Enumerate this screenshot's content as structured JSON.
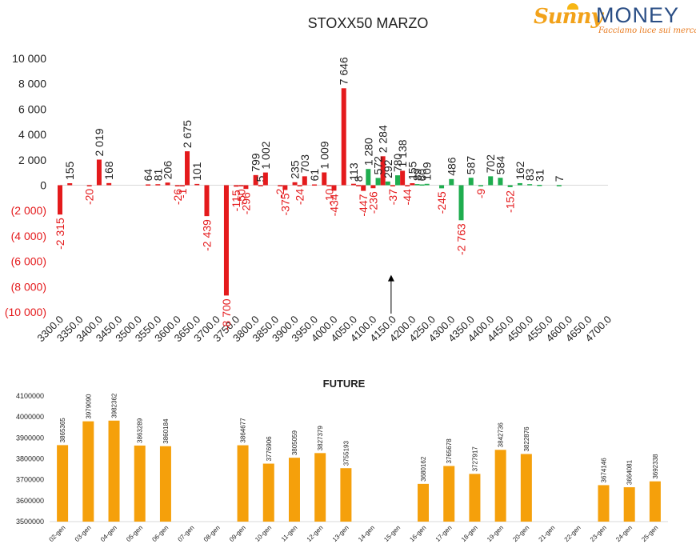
{
  "logo": {
    "brand_first": "Sunny",
    "brand_second": "MONEY",
    "tagline": "Facciamo luce sui mercati"
  },
  "colors": {
    "negative": "#e41a1c",
    "positive": "#1fad4f",
    "future": "#f5a00b",
    "axis": "#d9d9d9",
    "text": "#222222"
  },
  "chart_data": [
    {
      "type": "bar",
      "title": "STOXX50 MARZO",
      "x_tick_labels": [
        "3300.0",
        "3350.0",
        "3400.0",
        "3450.0",
        "3500.0",
        "3550.0",
        "3600.0",
        "3650.0",
        "3700.0",
        "3750.0",
        "3800.0",
        "3850.0",
        "3900.0",
        "3950.0",
        "4000.0",
        "4050.0",
        "4100.0",
        "4150.0",
        "4200.0",
        "4250.0",
        "4300.0",
        "4350.0",
        "4400.0",
        "4450.0",
        "4500.0",
        "4550.0",
        "4600.0",
        "4650.0",
        "4700.0"
      ],
      "y_tick_labels": [
        "10 000",
        "8 000",
        "6 000",
        "4 000",
        "2 000",
        "0",
        "(2 000)",
        "(4 000)",
        "(6 000)",
        "(8 000)",
        "(10 000)"
      ],
      "xlim": [
        3300,
        4700
      ],
      "ylim": [
        -10000,
        10000
      ],
      "annotation": "arrow at 4150.0",
      "series": [
        {
          "color": "red",
          "points": [
            {
              "x": 3300,
              "y": -2315,
              "label": "-2 315"
            },
            {
              "x": 3325,
              "y": 155,
              "label": "155"
            },
            {
              "x": 3375,
              "y": -20,
              "label": "-20"
            },
            {
              "x": 3400,
              "y": 2019,
              "label": "2 019"
            },
            {
              "x": 3425,
              "y": 168,
              "label": "168"
            },
            {
              "x": 3525,
              "y": 64,
              "label": "64"
            },
            {
              "x": 3550,
              "y": 81,
              "label": "81"
            },
            {
              "x": 3575,
              "y": 206,
              "label": "206"
            },
            {
              "x": 3600,
              "y": -26,
              "label": "-26"
            },
            {
              "x": 3612.5,
              "y": -1,
              "label": "-1"
            },
            {
              "x": 3625,
              "y": 2675,
              "label": "2 675"
            },
            {
              "x": 3650,
              "y": 101,
              "label": "101"
            },
            {
              "x": 3675,
              "y": -2439,
              "label": "-2 439"
            },
            {
              "x": 3725,
              "y": -8700,
              "label": "-8 700"
            },
            {
              "x": 3750,
              "y": -115,
              "label": "-115"
            },
            {
              "x": 3762.5,
              "y": -50,
              "label": "-50"
            },
            {
              "x": 3775,
              "y": -296,
              "label": "-296"
            },
            {
              "x": 3800,
              "y": 799,
              "label": "799"
            },
            {
              "x": 3812.5,
              "y": 5,
              "label": "5"
            },
            {
              "x": 3825,
              "y": 1002,
              "label": "1 002"
            },
            {
              "x": 3862.5,
              "y": -2,
              "label": "-2"
            },
            {
              "x": 3875,
              "y": -375,
              "label": "-375"
            },
            {
              "x": 3900,
              "y": 235,
              "label": "235"
            },
            {
              "x": 3912.5,
              "y": -24,
              "label": "-24"
            },
            {
              "x": 3925,
              "y": 703,
              "label": "703"
            },
            {
              "x": 3950,
              "y": 61,
              "label": "61"
            },
            {
              "x": 3975,
              "y": 1009,
              "label": "1 009"
            },
            {
              "x": 3987.5,
              "y": -10,
              "label": "-10"
            },
            {
              "x": 4000,
              "y": -434,
              "label": "-434"
            },
            {
              "x": 4025,
              "y": 7646,
              "label": "7 646"
            },
            {
              "x": 4050,
              "y": 113,
              "label": "113"
            },
            {
              "x": 4062.5,
              "y": 8,
              "label": "8"
            },
            {
              "x": 4075,
              "y": -447,
              "label": "-447"
            },
            {
              "x": 4100,
              "y": -236,
              "label": "-236"
            },
            {
              "x": 4125,
              "y": 2284,
              "label": "2 284"
            },
            {
              "x": 4150,
              "y": -37,
              "label": "-37"
            },
            {
              "x": 4175,
              "y": 1138,
              "label": "1 138"
            },
            {
              "x": 4187.5,
              "y": -44,
              "label": "-44"
            },
            {
              "x": 4200,
              "y": 155,
              "label": "155"
            }
          ]
        },
        {
          "color": "green",
          "points": [
            {
              "x": 4087.5,
              "y": 1280,
              "label": "1 280"
            },
            {
              "x": 4112.5,
              "y": 572,
              "label": "572"
            },
            {
              "x": 4137.5,
              "y": 292,
              "label": "292"
            },
            {
              "x": 4162.5,
              "y": 780,
              "label": "780"
            },
            {
              "x": 4212.5,
              "y": 89,
              "label": "89"
            },
            {
              "x": 4225,
              "y": 60,
              "label": "60"
            },
            {
              "x": 4237.5,
              "y": 109,
              "label": "109"
            },
            {
              "x": 4275,
              "y": -245,
              "label": "-245"
            },
            {
              "x": 4300,
              "y": 486,
              "label": "486"
            },
            {
              "x": 4325,
              "y": -2763,
              "label": "-2 763"
            },
            {
              "x": 4350,
              "y": 587,
              "label": "587"
            },
            {
              "x": 4375,
              "y": -9,
              "label": "-9"
            },
            {
              "x": 4400,
              "y": 702,
              "label": "702"
            },
            {
              "x": 4425,
              "y": 584,
              "label": "584"
            },
            {
              "x": 4450,
              "y": -152,
              "label": "-152"
            },
            {
              "x": 4475,
              "y": 162,
              "label": "162"
            },
            {
              "x": 4500,
              "y": 83,
              "label": "83"
            },
            {
              "x": 4525,
              "y": 31,
              "label": "31"
            },
            {
              "x": 4575,
              "y": 7,
              "label": "7"
            }
          ]
        }
      ]
    },
    {
      "type": "bar",
      "title": "FUTURE",
      "categories": [
        "02-gen",
        "03-gen",
        "04-gen",
        "05-gen",
        "06-gen",
        "07-gen",
        "08-gen",
        "09-gen",
        "10-gen",
        "11-gen",
        "12-gen",
        "13-gen",
        "14-gen",
        "15-gen",
        "16-gen",
        "17-gen",
        "18-gen",
        "19-gen",
        "20-gen",
        "21-gen",
        "22-gen",
        "23-gen",
        "24-gen",
        "25-gen"
      ],
      "values": [
        3865365,
        3979090,
        3982362,
        3863289,
        3860184,
        null,
        null,
        3864677,
        3776906,
        3805059,
        3827379,
        3755193,
        null,
        null,
        3680162,
        3765678,
        3727917,
        3842736,
        3822876,
        null,
        null,
        3674146,
        3664081,
        3692338
      ],
      "value_labels": [
        "3865365",
        "3979090",
        "3982362",
        "3863289",
        "3860184",
        "",
        "",
        "3864677",
        "3776906",
        "3805059",
        "3827379",
        "3755193",
        "",
        "",
        "3680162",
        "3765678",
        "3727917",
        "3842736",
        "3822876",
        "",
        "",
        "3674146",
        "3664081",
        "3692338"
      ],
      "y_tick_labels": [
        "4100000",
        "4000000",
        "3900000",
        "3800000",
        "3700000",
        "3600000",
        "3500000"
      ],
      "ylim": [
        3500000,
        4100000
      ]
    }
  ]
}
